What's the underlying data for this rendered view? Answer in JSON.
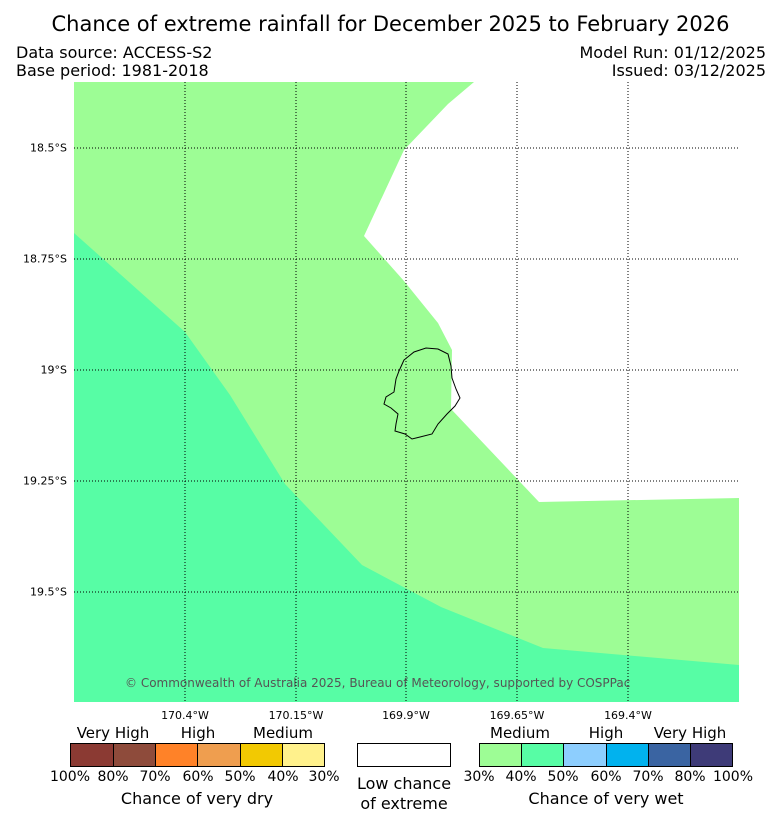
{
  "title": "Chance of extreme rainfall for December 2025 to February 2026",
  "header": {
    "data_source": "Data source: ACCESS-S2",
    "base_period": "Base period: 1981-2018",
    "model_run": "Model Run: 01/12/2025",
    "issued": "Issued: 03/12/2025"
  },
  "map": {
    "lat_labels": [
      "18.5°S",
      "18.75°S",
      "19°S",
      "19.25°S",
      "19.5°S"
    ],
    "lon_labels": [
      "170.4°W",
      "170.15°W",
      "169.9°W",
      "169.65°W",
      "169.4°W"
    ],
    "copyright": "© Commonwealth of Australia 2025, Bureau of Meteorology, supported by COSPPac",
    "colors": {
      "medium_wet_30_40": "#9dfd95",
      "wet_40_50": "#57fda5",
      "low": "#ffffff"
    }
  },
  "legend": {
    "dry": {
      "levels": [
        "Very High",
        "High",
        "Medium"
      ],
      "colors": [
        "#8b3a33",
        "#8e4b3b",
        "#ff8228",
        "#ef9e4f",
        "#f2c902",
        "#fff18c"
      ],
      "ticks": [
        "100%",
        "80%",
        "70%",
        "60%",
        "50%",
        "40%",
        "30%"
      ],
      "caption": "Chance of very dry"
    },
    "low": {
      "color": "#ffffff",
      "caption_line1": "Low chance",
      "caption_line2": "of extreme"
    },
    "wet": {
      "levels": [
        "Medium",
        "High",
        "Very High"
      ],
      "colors": [
        "#9dfd95",
        "#57fda5",
        "#8dcefe",
        "#01b2ee",
        "#3a64a2",
        "#3e3b78"
      ],
      "ticks": [
        "30%",
        "40%",
        "50%",
        "60%",
        "70%",
        "80%",
        "100%"
      ],
      "caption": "Chance of very wet"
    }
  }
}
